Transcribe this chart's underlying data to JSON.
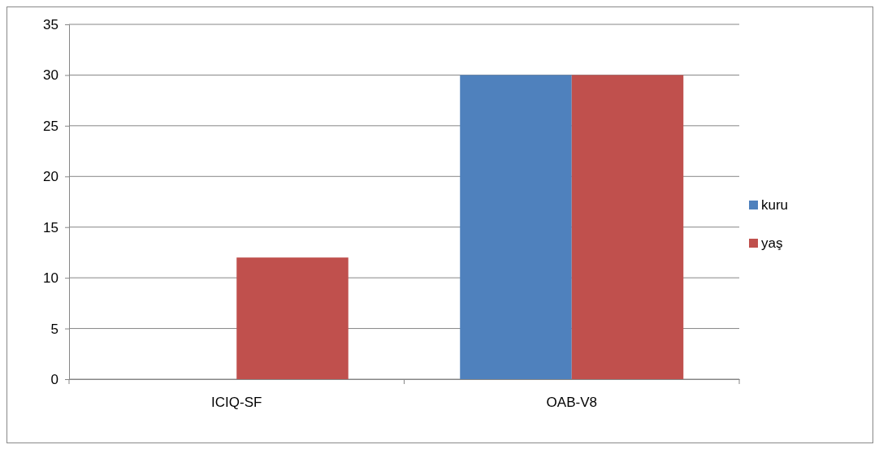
{
  "chart_data": {
    "type": "bar",
    "categories": [
      "ICIQ-SF",
      "OAB-V8"
    ],
    "series": [
      {
        "name": "kuru",
        "color": "#4f81bd",
        "values": [
          0,
          30
        ]
      },
      {
        "name": "yaş",
        "color": "#c0504d",
        "values": [
          12,
          30
        ]
      }
    ],
    "ylim": [
      0,
      35
    ],
    "yticks": [
      0,
      5,
      10,
      15,
      20,
      25,
      30,
      35
    ],
    "grid": "y",
    "legend": "right"
  }
}
